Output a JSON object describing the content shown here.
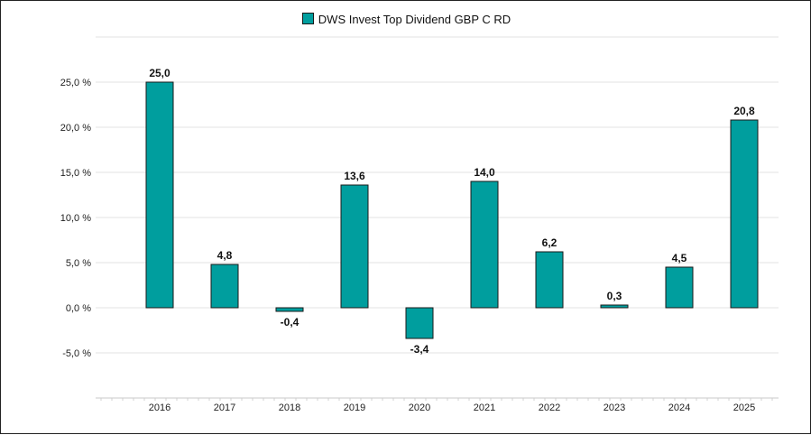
{
  "chart_data": {
    "type": "bar",
    "title": "",
    "xlabel": "",
    "ylabel": "",
    "legend": {
      "position": "top-center",
      "entries": [
        "DWS Invest Top Dividend GBP C RD"
      ]
    },
    "categories": [
      "2016",
      "2017",
      "2018",
      "2019",
      "2020",
      "2021",
      "2022",
      "2023",
      "2024",
      "2025"
    ],
    "series": [
      {
        "name": "DWS Invest Top Dividend GBP C RD",
        "values": [
          25.0,
          4.8,
          -0.4,
          13.6,
          -3.4,
          14.0,
          6.2,
          0.3,
          4.5,
          20.8
        ],
        "labels": [
          "25,0",
          "4,8",
          "-0,4",
          "13,6",
          "-3,4",
          "14,0",
          "6,2",
          "0,3",
          "4,5",
          "20,8"
        ],
        "color": "#009e9e"
      }
    ],
    "yticks": [
      25,
      20,
      15,
      10,
      5,
      0,
      -5
    ],
    "ytick_labels": [
      "25,0 %",
      "20,0 %",
      "15,0 %",
      "10,0 %",
      "5,0 %",
      "0,0 %",
      "-5,0 %"
    ],
    "ylim": [
      -10,
      30
    ],
    "grid": true
  }
}
